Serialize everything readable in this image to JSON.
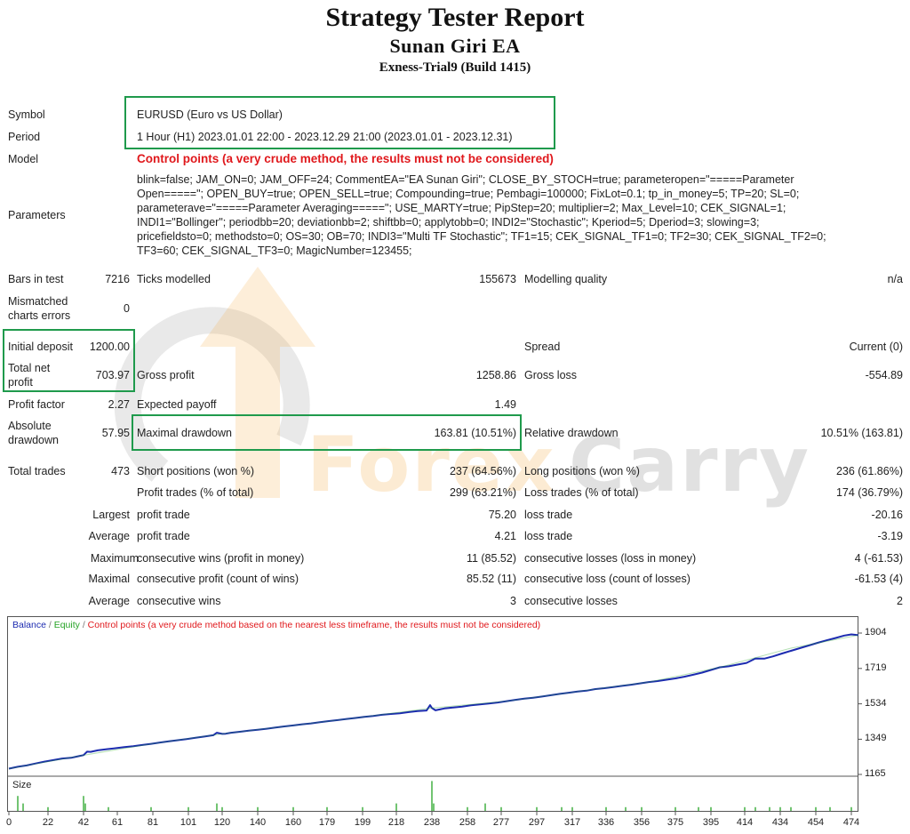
{
  "report": {
    "title": "Strategy Tester Report",
    "ea_name": "Sunan Giri EA",
    "server": "Exness-Trial9 (Build 1415)"
  },
  "settings": {
    "symbol_label": "Symbol",
    "symbol_value": "EURUSD (Euro vs US Dollar)",
    "period_label": "Period",
    "period_value": "1 Hour (H1) 2023.01.01 22:00 - 2023.12.29 21:00 (2023.01.01 - 2023.12.31)",
    "model_label": "Model",
    "model_value": "Control points (a very crude method, the results must not be considered)",
    "parameters_label": "Parameters",
    "parameters_lines": [
      "blink=false; JAM_ON=0; JAM_OFF=24; CommentEA=\"EA Sunan Giri\"; CLOSE_BY_STOCH=true; parameteropen=\"=====Parameter",
      "Open=====\"; OPEN_BUY=true; OPEN_SELL=true; Compounding=true; Pembagi=100000; FixLot=0.1; tp_in_money=5; TP=20; SL=0;",
      "parameterave=\"=====Parameter Averaging=====\"; USE_MARTY=true; PipStep=20; multiplier=2; Max_Level=10; CEK_SIGNAL=1;",
      "INDI1=\"Bollinger\"; periodbb=20; deviationbb=2; shiftbb=0; applytobb=0; INDI2=\"Stochastic\"; Kperiod=5; Dperiod=3; slowing=3;",
      "pricefieldsto=0; methodsto=0; OS=30; OB=70; INDI3=\"Multi TF Stochastic\"; TF1=15; CEK_SIGNAL_TF1=0; TF2=30; CEK_SIGNAL_TF2=0;",
      "TF3=60; CEK_SIGNAL_TF3=0; MagicNumber=123455;"
    ]
  },
  "results": {
    "bars_label": "Bars in test",
    "bars_value": "7216",
    "ticks_label": "Ticks modelled",
    "ticks_value": "155673",
    "quality_label": "Modelling quality",
    "quality_value": "n/a",
    "mismatch_label_1": "Mismatched",
    "mismatch_label_2": "charts errors",
    "mismatch_value": "0",
    "deposit_label": "Initial deposit",
    "deposit_value": "1200.00",
    "spread_label": "Spread",
    "spread_value": "Current (0)",
    "netprofit_label_1": "Total net",
    "netprofit_label_2": "profit",
    "netprofit_value": "703.97",
    "grossprofit_label": "Gross profit",
    "grossprofit_value": "1258.86",
    "grossloss_label": "Gross loss",
    "grossloss_value": "-554.89",
    "pf_label": "Profit factor",
    "pf_value": "2.27",
    "payoff_label": "Expected payoff",
    "payoff_value": "1.49",
    "absdd_label_1": "Absolute",
    "absdd_label_2": "drawdown",
    "absdd_value": "57.95",
    "maxdd_label": "Maximal drawdown",
    "maxdd_value": "163.81 (10.51%)",
    "reldd_label": "Relative drawdown",
    "reldd_value": "10.51% (163.81)",
    "trades_label": "Total trades",
    "trades_value": "473",
    "short_label": "Short positions (won %)",
    "short_value": "237 (64.56%)",
    "long_label": "Long positions (won %)",
    "long_value": "236 (61.86%)",
    "profit_trades_label": "Profit trades (% of total)",
    "profit_trades_value": "299 (63.21%)",
    "loss_trades_label": "Loss trades (% of total)",
    "loss_trades_value": "174 (36.79%)",
    "largest_label": "Largest",
    "largest_profit_label": "profit trade",
    "largest_profit_value": "75.20",
    "largest_loss_label": "loss trade",
    "largest_loss_value": "-20.16",
    "average_label": "Average",
    "average_profit_label": "profit trade",
    "average_profit_value": "4.21",
    "average_loss_label": "loss trade",
    "average_loss_value": "-3.19",
    "maximum_label": "Maximum",
    "max_wins_label": "consecutive wins (profit in money)",
    "max_wins_value": "11 (85.52)",
    "max_losses_label": "consecutive losses (loss in money)",
    "max_losses_value": "4 (-61.53)",
    "maximal_label": "Maximal",
    "maximal_profit_label": "consecutive profit (count of wins)",
    "maximal_profit_value": "85.52 (11)",
    "maximal_loss_label": "consecutive loss (count of losses)",
    "maximal_loss_value": "-61.53 (4)",
    "avg_cons_label": "Average",
    "avg_wins_label": "consecutive wins",
    "avg_wins_value": "3",
    "avg_losses_label": "consecutive losses",
    "avg_losses_value": "2"
  },
  "watermark": {
    "part1": "Forex",
    "part2": "Carry"
  },
  "legend": {
    "balance": "Balance",
    "sep1": " / ",
    "equity": "Equity",
    "sep2": " / ",
    "control": "Control points (a very crude method based on the nearest less timeframe, the results must not be considered)"
  },
  "colors": {
    "balance_line": "#1c2bb0",
    "equity_line": "#27a327",
    "size_bars": "#27a327",
    "warning": "#e0181c",
    "highlight_box": "#1f9a4c",
    "watermark_orange": "#f2a02a",
    "watermark_gray": "#6f6f6f"
  },
  "chart_data": {
    "type": "line",
    "size_label": "Size",
    "y_ticks": [
      "1904",
      "1719",
      "1534",
      "1349",
      "1165"
    ],
    "ylim": [
      1165,
      1904
    ],
    "x_ticks": [
      "0",
      "22",
      "42",
      "61",
      "81",
      "101",
      "120",
      "140",
      "160",
      "179",
      "199",
      "218",
      "238",
      "258",
      "277",
      "297",
      "317",
      "336",
      "356",
      "375",
      "395",
      "414",
      "434",
      "454",
      "474"
    ],
    "xlim": [
      0,
      478
    ],
    "series": [
      {
        "name": "Balance",
        "x": [
          0,
          5,
          10,
          15,
          20,
          25,
          30,
          35,
          38,
          40,
          42,
          44,
          46,
          50,
          55,
          60,
          65,
          70,
          75,
          80,
          85,
          90,
          95,
          100,
          105,
          110,
          115,
          117,
          120,
          122,
          125,
          130,
          135,
          140,
          145,
          150,
          155,
          160,
          165,
          170,
          175,
          180,
          185,
          190,
          195,
          200,
          205,
          210,
          215,
          220,
          225,
          230,
          235,
          237,
          238,
          240,
          243,
          245,
          250,
          255,
          260,
          265,
          270,
          275,
          280,
          285,
          290,
          295,
          300,
          305,
          310,
          315,
          320,
          325,
          330,
          335,
          340,
          345,
          350,
          355,
          360,
          365,
          370,
          375,
          380,
          385,
          390,
          395,
          400,
          405,
          410,
          415,
          420,
          425,
          430,
          435,
          440,
          445,
          450,
          455,
          460,
          465,
          470,
          474,
          478
        ],
        "values": [
          1195,
          1205,
          1212,
          1222,
          1232,
          1240,
          1248,
          1252,
          1258,
          1262,
          1266,
          1284,
          1283,
          1291,
          1297,
          1302,
          1308,
          1313,
          1319,
          1325,
          1332,
          1338,
          1344,
          1350,
          1357,
          1363,
          1370,
          1383,
          1377,
          1378,
          1383,
          1388,
          1394,
          1399,
          1404,
          1410,
          1416,
          1421,
          1427,
          1432,
          1438,
          1444,
          1449,
          1455,
          1460,
          1466,
          1471,
          1477,
          1481,
          1485,
          1491,
          1496,
          1499,
          1527,
          1512,
          1500,
          1506,
          1510,
          1515,
          1519,
          1526,
          1531,
          1536,
          1541,
          1548,
          1555,
          1561,
          1566,
          1572,
          1579,
          1586,
          1592,
          1598,
          1603,
          1611,
          1616,
          1622,
          1628,
          1634,
          1641,
          1648,
          1653,
          1660,
          1667,
          1676,
          1686,
          1697,
          1711,
          1725,
          1730,
          1739,
          1748,
          1771,
          1770,
          1782,
          1797,
          1811,
          1825,
          1839,
          1853,
          1866,
          1878,
          1891,
          1897,
          1893
        ]
      },
      {
        "name": "Equity",
        "x": [
          0,
          40,
          80,
          120,
          160,
          200,
          238,
          280,
          320,
          360,
          400,
          440,
          478
        ],
        "values": [
          1195,
          1262,
          1325,
          1377,
          1421,
          1466,
          1512,
          1548,
          1598,
          1648,
          1725,
          1825,
          1893
        ]
      }
    ],
    "size_bars": {
      "x": [
        5,
        8,
        22,
        42,
        43,
        56,
        80,
        101,
        117,
        120,
        140,
        160,
        179,
        199,
        218,
        238,
        239,
        258,
        268,
        277,
        297,
        311,
        317,
        336,
        347,
        356,
        375,
        388,
        395,
        414,
        420,
        428,
        434,
        440,
        454,
        462,
        474
      ],
      "values": [
        4,
        2,
        1,
        4,
        2,
        1,
        1,
        1,
        2,
        1,
        1,
        1,
        1,
        1,
        2,
        8,
        2,
        1,
        2,
        1,
        1,
        1,
        1,
        1,
        1,
        1,
        1,
        1,
        1,
        1,
        1,
        1,
        1,
        1,
        1,
        1,
        1
      ]
    }
  }
}
